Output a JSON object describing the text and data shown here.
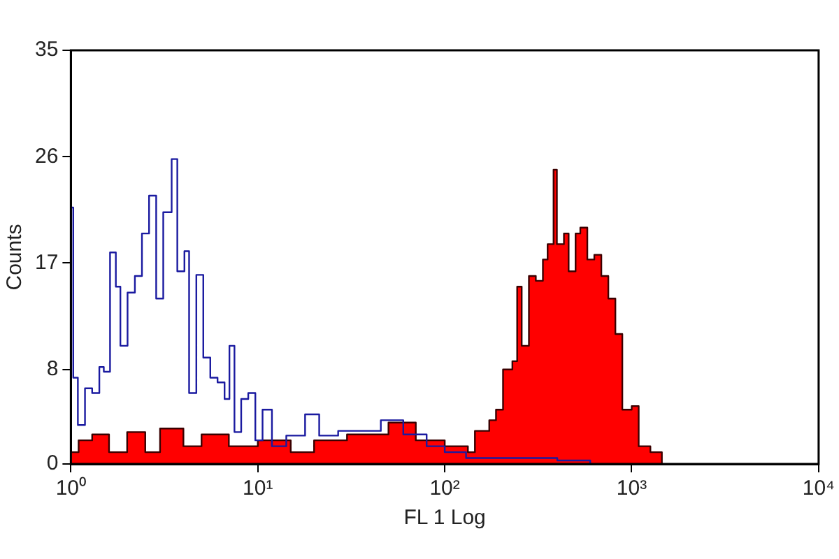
{
  "chart_data": {
    "type": "area",
    "xlabel": "FL 1 Log",
    "ylabel": "Counts",
    "log": "x",
    "grid": false,
    "legend": false,
    "marker": "none",
    "xlim": [
      1,
      10000
    ],
    "xticks": [
      {
        "value": 1,
        "label": "10⁰"
      },
      {
        "value": 10,
        "label": "10¹"
      },
      {
        "value": 100,
        "label": "10²"
      },
      {
        "value": 1000,
        "label": "10³"
      },
      {
        "value": 10000,
        "label": "10⁴"
      }
    ],
    "ylim": [
      0,
      35
    ],
    "yticks": [
      0,
      8,
      17,
      26,
      35
    ],
    "series": [
      {
        "type": "step",
        "color": "#1a1aa0",
        "x": [
          1.0,
          1.03,
          1.09,
          1.19,
          1.3,
          1.42,
          1.5,
          1.62,
          1.74,
          1.84,
          2.01,
          2.2,
          2.4,
          2.62,
          2.86,
          3.12,
          3.46,
          3.71,
          4.05,
          4.29,
          4.69,
          5.11,
          5.57,
          6.09,
          6.64,
          7.05,
          7.5,
          8.15,
          8.89,
          9.7,
          10.6,
          11.9,
          14.2,
          17.9,
          21.3,
          26.9,
          34,
          45.5,
          60,
          80,
          100,
          130,
          200,
          400,
          600
        ],
        "values": [
          21.7,
          7.3,
          3.3,
          6.4,
          6,
          8.2,
          7.8,
          17.9,
          15,
          10,
          14.5,
          15.9,
          19.5,
          22.7,
          14,
          21.3,
          25.8,
          16.3,
          18,
          6,
          16,
          9,
          7.3,
          6.9,
          5.5,
          10,
          2.7,
          5.5,
          6,
          2,
          4.6,
          1.5,
          2.4,
          4.2,
          2.4,
          2.8,
          2.8,
          3.7,
          2.5,
          1.5,
          1,
          0.5,
          0.5,
          0.3,
          0
        ]
      },
      {
        "color": "#ff0000",
        "x": [
          1.0,
          1.1,
          1.3,
          1.6,
          2,
          2.5,
          3,
          4,
          5,
          7,
          10,
          15,
          20,
          30,
          50,
          70,
          100,
          133,
          145,
          173,
          188,
          205,
          230,
          244,
          258,
          282,
          307,
          335,
          355,
          382,
          398,
          434,
          460,
          501,
          531,
          579,
          631,
          688,
          750,
          818,
          891,
          1000,
          1090,
          1259,
          1413,
          1450
        ],
        "values": [
          1,
          2,
          2.5,
          1,
          2.7,
          1,
          3,
          1.5,
          2.5,
          1.5,
          2,
          1,
          2,
          2.5,
          3.5,
          2,
          1.5,
          1,
          2.8,
          3.7,
          4.6,
          8,
          8.7,
          15,
          10,
          15.9,
          15.5,
          17.3,
          18.6,
          24.9,
          18.6,
          19.5,
          16.3,
          19.5,
          20,
          17.3,
          17.7,
          15.9,
          14,
          11,
          4.6,
          4.9,
          1.5,
          1,
          1,
          0
        ]
      }
    ]
  }
}
